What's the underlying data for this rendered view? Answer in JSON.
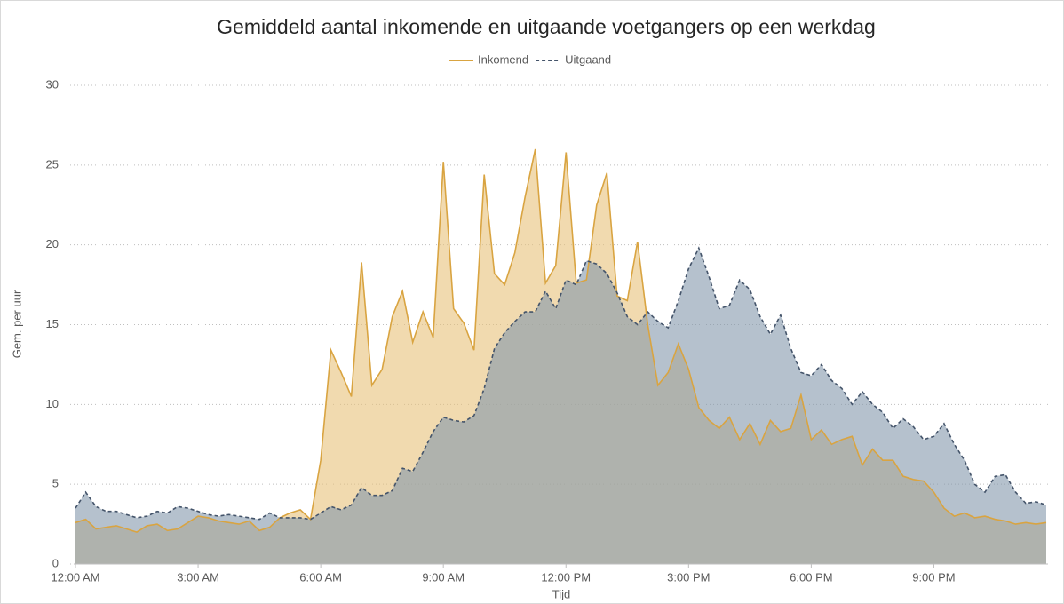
{
  "chart_data": {
    "type": "area",
    "title": "Gemiddeld aantal inkomende en uitgaande voetgangers op een werkdag",
    "xlabel": "Tijd",
    "ylabel": "Gem. per uur",
    "x": [
      0,
      0.25,
      0.5,
      0.75,
      1,
      1.25,
      1.5,
      1.75,
      2,
      2.25,
      2.5,
      2.75,
      3,
      3.25,
      3.5,
      3.75,
      4,
      4.25,
      4.5,
      4.75,
      5,
      5.25,
      5.5,
      5.75,
      6,
      6.25,
      6.5,
      6.75,
      7,
      7.25,
      7.5,
      7.75,
      8,
      8.25,
      8.5,
      8.75,
      9,
      9.25,
      9.5,
      9.75,
      10,
      10.25,
      10.5,
      10.75,
      11,
      11.25,
      11.5,
      11.75,
      12,
      12.25,
      12.5,
      12.75,
      13,
      13.25,
      13.5,
      13.75,
      14,
      14.25,
      14.5,
      14.75,
      15,
      15.25,
      15.5,
      15.75,
      16,
      16.25,
      16.5,
      16.75,
      17,
      17.25,
      17.5,
      17.75,
      18,
      18.25,
      18.5,
      18.75,
      19,
      19.25,
      19.5,
      19.75,
      20,
      20.25,
      20.5,
      20.75,
      21,
      21.25,
      21.5,
      21.75,
      22,
      22.25,
      22.5,
      22.75,
      23,
      23.25,
      23.5,
      23.75
    ],
    "series": [
      {
        "name": "Inkomend",
        "color": "#d9a441",
        "fill": "#e8c27a",
        "dash": false,
        "values": [
          2.6,
          2.8,
          2.2,
          2.3,
          2.4,
          2.2,
          2.0,
          2.4,
          2.5,
          2.1,
          2.2,
          2.6,
          3.0,
          2.9,
          2.7,
          2.6,
          2.5,
          2.7,
          2.1,
          2.3,
          2.9,
          3.2,
          3.4,
          2.8,
          6.5,
          13.4,
          12.0,
          10.5,
          18.9,
          11.2,
          12.2,
          15.5,
          17.1,
          13.9,
          15.8,
          14.2,
          25.2,
          16.0,
          15.1,
          13.4,
          24.4,
          18.2,
          17.5,
          19.5,
          23.0,
          26.0,
          17.6,
          18.7,
          25.8,
          17.6,
          17.8,
          22.5,
          24.5,
          16.8,
          16.5,
          20.2,
          15.0,
          11.2,
          12.0,
          13.8,
          12.2,
          9.8,
          9.0,
          8.5,
          9.2,
          7.8,
          8.8,
          7.5,
          9.0,
          8.3,
          8.5,
          10.6,
          7.8,
          8.4,
          7.5,
          7.8,
          8.0,
          6.2,
          7.2,
          6.5,
          6.5,
          5.5,
          5.3,
          5.2,
          4.5,
          3.5,
          3.0,
          3.2,
          2.9,
          3.0,
          2.8,
          2.7,
          2.5,
          2.6,
          2.5,
          2.6
        ]
      },
      {
        "name": "Uitgaand",
        "color": "#44546a",
        "fill": "#8497ab",
        "dash": true,
        "values": [
          3.5,
          4.5,
          3.6,
          3.3,
          3.3,
          3.1,
          2.9,
          3.0,
          3.3,
          3.2,
          3.6,
          3.5,
          3.3,
          3.1,
          3.0,
          3.1,
          3.0,
          2.9,
          2.8,
          3.2,
          2.9,
          2.9,
          2.9,
          2.8,
          3.2,
          3.6,
          3.4,
          3.7,
          4.8,
          4.3,
          4.3,
          4.6,
          6.0,
          5.8,
          7.0,
          8.3,
          9.2,
          9.0,
          8.9,
          9.3,
          11.0,
          13.5,
          14.5,
          15.2,
          15.8,
          15.8,
          17.1,
          16.0,
          17.8,
          17.5,
          19.0,
          18.8,
          18.2,
          17.0,
          15.5,
          15.0,
          15.8,
          15.2,
          14.8,
          16.5,
          18.5,
          19.8,
          18.0,
          16.0,
          16.2,
          17.8,
          17.2,
          15.5,
          14.4,
          15.6,
          13.5,
          12.0,
          11.8,
          12.5,
          11.5,
          11.0,
          10.0,
          10.8,
          10.0,
          9.5,
          8.5,
          9.1,
          8.6,
          7.8,
          8.0,
          8.8,
          7.5,
          6.5,
          5.0,
          4.5,
          5.5,
          5.6,
          4.5,
          3.8,
          3.9,
          3.7
        ]
      }
    ],
    "xlim": [
      0,
      23.75
    ],
    "xticks": [
      {
        "value": 0,
        "label": "12:00 AM"
      },
      {
        "value": 3,
        "label": "3:00 AM"
      },
      {
        "value": 6,
        "label": "6:00 AM"
      },
      {
        "value": 9,
        "label": "9:00 AM"
      },
      {
        "value": 12,
        "label": "12:00 PM"
      },
      {
        "value": 15,
        "label": "3:00 PM"
      },
      {
        "value": 18,
        "label": "6:00 PM"
      },
      {
        "value": 21,
        "label": "9:00 PM"
      }
    ],
    "ylim": [
      0,
      30
    ],
    "yticks": [
      0,
      5,
      10,
      15,
      20,
      25,
      30
    ],
    "grid": true,
    "legend": "top"
  }
}
